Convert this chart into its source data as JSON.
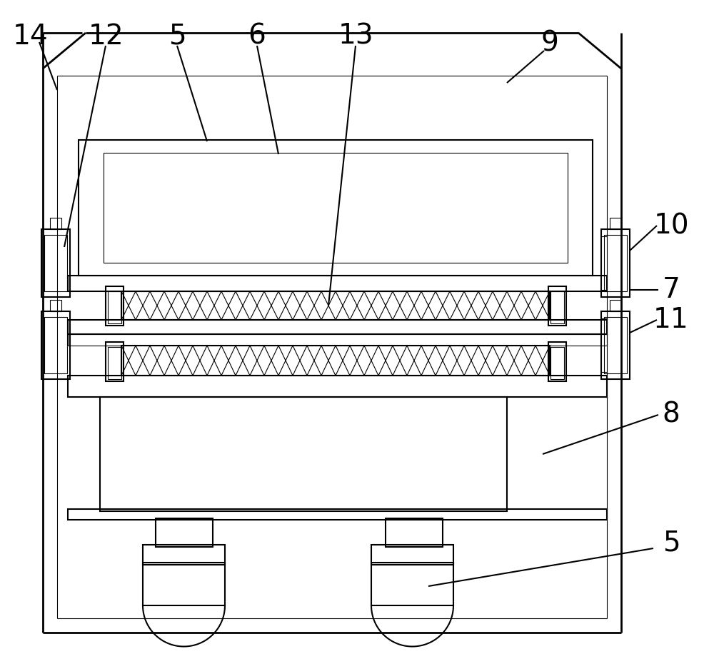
{
  "bg_color": "#ffffff",
  "line_color": "#000000",
  "lw_main": 1.5,
  "lw_thin": 0.8,
  "lw_thick": 2.0,
  "label_fontsize": 28
}
